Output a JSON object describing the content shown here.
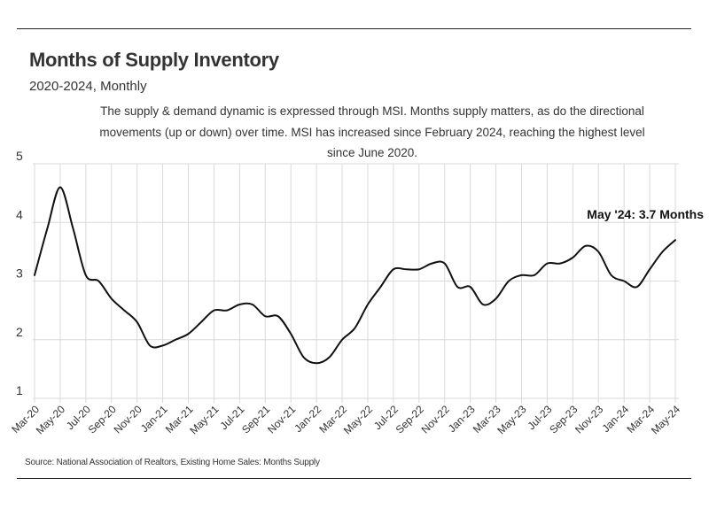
{
  "header": {
    "title": "Months of Supply Inventory",
    "subtitle": "2020-2024, Monthly",
    "description": "The supply & demand dynamic is expressed through MSI. Months supply matters, as do the directional movements (up or down) over time. MSI has increased since February 2024, reaching the highest level since June 2020."
  },
  "footer": {
    "source": "Source:  National Association of Realtors, Existing Home Sales: Months Supply"
  },
  "chart_data": {
    "type": "line",
    "title": "Months of Supply Inventory",
    "subtitle": "2020-2024, Monthly",
    "xlabel": "",
    "ylabel": "",
    "ylim": [
      1,
      5
    ],
    "yticks": [
      1,
      2,
      3,
      4,
      5
    ],
    "grid": true,
    "line_color": "#111111",
    "x": [
      "Mar-20",
      "Apr-20",
      "May-20",
      "Jun-20",
      "Jul-20",
      "Aug-20",
      "Sep-20",
      "Oct-20",
      "Nov-20",
      "Dec-20",
      "Jan-21",
      "Feb-21",
      "Mar-21",
      "Apr-21",
      "May-21",
      "Jun-21",
      "Jul-21",
      "Aug-21",
      "Sep-21",
      "Oct-21",
      "Nov-21",
      "Dec-21",
      "Jan-22",
      "Feb-22",
      "Mar-22",
      "Apr-22",
      "May-22",
      "Jun-22",
      "Jul-22",
      "Aug-22",
      "Sep-22",
      "Oct-22",
      "Nov-22",
      "Dec-22",
      "Jan-23",
      "Feb-23",
      "Mar-23",
      "Apr-23",
      "May-23",
      "Jun-23",
      "Jul-23",
      "Aug-23",
      "Sep-23",
      "Oct-23",
      "Nov-23",
      "Dec-23",
      "Jan-24",
      "Feb-24",
      "Mar-24",
      "Apr-24",
      "May-24"
    ],
    "xtick_labels": [
      "Mar-20",
      "May-20",
      "Jul-20",
      "Sep-20",
      "Nov-20",
      "Jan-21",
      "Mar-21",
      "May-21",
      "Jul-21",
      "Sep-21",
      "Nov-21",
      "Jan-22",
      "Mar-22",
      "May-22",
      "Jul-22",
      "Sep-22",
      "Nov-22",
      "Jan-23",
      "Mar-23",
      "May-23",
      "Jul-23",
      "Sep-23",
      "Nov-23",
      "Jan-24",
      "Mar-24",
      "May-24"
    ],
    "series": [
      {
        "values": [
          3.1,
          3.9,
          4.6,
          3.9,
          3.1,
          3.0,
          2.7,
          2.5,
          2.3,
          1.9,
          1.9,
          2.0,
          2.1,
          2.3,
          2.5,
          2.5,
          2.6,
          2.6,
          2.4,
          2.4,
          2.1,
          1.7,
          1.6,
          1.7,
          2.0,
          2.2,
          2.6,
          2.9,
          3.2,
          3.2,
          3.2,
          3.3,
          3.3,
          2.9,
          2.9,
          2.6,
          2.7,
          3.0,
          3.1,
          3.1,
          3.3,
          3.3,
          3.4,
          3.6,
          3.5,
          3.1,
          3.0,
          2.9,
          3.2,
          3.5,
          3.7
        ]
      }
    ],
    "annotations": [
      {
        "text": "May '24: 3.7 Months",
        "x": "May-24",
        "y": 3.7
      }
    ]
  }
}
